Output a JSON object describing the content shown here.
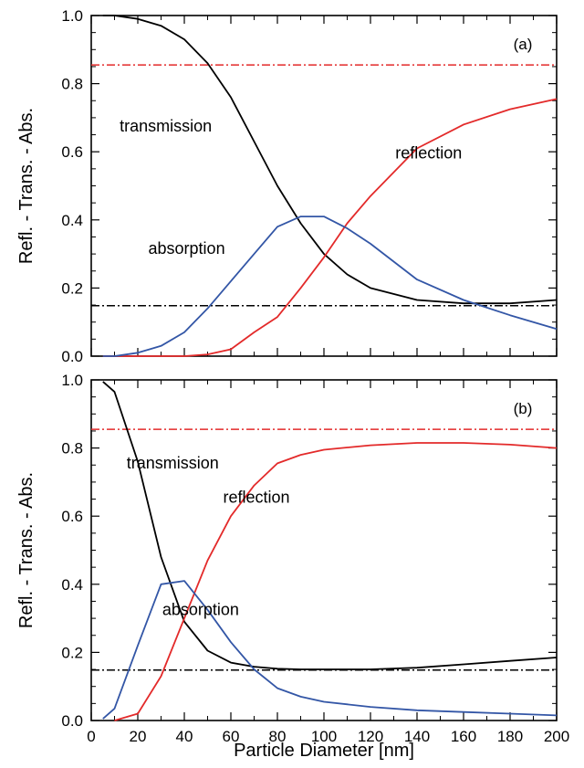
{
  "chart_data": [
    {
      "type": "line",
      "panel_label": "(a)",
      "xlabel": "",
      "ylabel": "Refl. - Trans. - Abs.",
      "xlim": [
        0,
        200
      ],
      "ylim": [
        0,
        1.0
      ],
      "xticks": [
        0,
        20,
        40,
        60,
        80,
        100,
        120,
        140,
        160,
        180,
        200
      ],
      "yticks": [
        0.0,
        0.2,
        0.4,
        0.6,
        0.8,
        1.0
      ],
      "x_tick_labels_shown": false,
      "grid": false,
      "series": [
        {
          "name": "transmission",
          "color": "#000000",
          "x": [
            5,
            10,
            20,
            30,
            40,
            50,
            60,
            70,
            80,
            90,
            100,
            110,
            120,
            140,
            160,
            180,
            200
          ],
          "y": [
            1.0,
            1.0,
            0.99,
            0.97,
            0.93,
            0.86,
            0.76,
            0.63,
            0.5,
            0.39,
            0.3,
            0.24,
            0.2,
            0.165,
            0.155,
            0.155,
            0.165
          ]
        },
        {
          "name": "reflection",
          "color": "#e32a2a",
          "x": [
            5,
            10,
            20,
            30,
            40,
            50,
            60,
            70,
            80,
            90,
            100,
            110,
            120,
            140,
            160,
            180,
            200
          ],
          "y": [
            0.0,
            0.0,
            0.0,
            0.0,
            0.0,
            0.005,
            0.02,
            0.07,
            0.115,
            0.2,
            0.29,
            0.39,
            0.47,
            0.61,
            0.68,
            0.725,
            0.755
          ]
        },
        {
          "name": "absorption",
          "color": "#3356a6",
          "x": [
            5,
            10,
            20,
            30,
            40,
            50,
            60,
            70,
            80,
            90,
            100,
            110,
            120,
            140,
            160,
            180,
            200
          ],
          "y": [
            0.0,
            0.0,
            0.01,
            0.03,
            0.07,
            0.14,
            0.22,
            0.3,
            0.38,
            0.41,
            0.41,
            0.375,
            0.33,
            0.225,
            0.165,
            0.12,
            0.08
          ]
        }
      ],
      "reference_lines": [
        {
          "y": 0.855,
          "color": "#e32a2a",
          "style": "dash-dot"
        },
        {
          "y": 0.148,
          "color": "#000000",
          "style": "dash-dot"
        }
      ],
      "annotations": [
        {
          "text": "transmission",
          "x": 32,
          "y": 0.66
        },
        {
          "text": "reflection",
          "x": 145,
          "y": 0.58
        },
        {
          "text": "absorption",
          "x": 41,
          "y": 0.3
        }
      ]
    },
    {
      "type": "line",
      "panel_label": "(b)",
      "xlabel": "Particle Diameter [nm]",
      "ylabel": "Refl. - Trans. - Abs.",
      "xlim": [
        0,
        200
      ],
      "ylim": [
        0,
        1.0
      ],
      "xticks": [
        0,
        20,
        40,
        60,
        80,
        100,
        120,
        140,
        160,
        180,
        200
      ],
      "yticks": [
        0.0,
        0.2,
        0.4,
        0.6,
        0.8,
        1.0
      ],
      "x_tick_labels_shown": true,
      "grid": false,
      "series": [
        {
          "name": "transmission",
          "color": "#000000",
          "x": [
            5,
            10,
            20,
            30,
            40,
            50,
            60,
            70,
            80,
            90,
            100,
            120,
            140,
            160,
            180,
            200
          ],
          "y": [
            0.995,
            0.965,
            0.76,
            0.48,
            0.29,
            0.205,
            0.17,
            0.158,
            0.152,
            0.15,
            0.15,
            0.15,
            0.155,
            0.165,
            0.175,
            0.185
          ]
        },
        {
          "name": "reflection",
          "color": "#e32a2a",
          "x": [
            10,
            20,
            30,
            40,
            50,
            60,
            70,
            80,
            90,
            100,
            120,
            140,
            160,
            180,
            200
          ],
          "y": [
            0.0,
            0.02,
            0.13,
            0.3,
            0.47,
            0.6,
            0.69,
            0.755,
            0.78,
            0.795,
            0.808,
            0.815,
            0.815,
            0.81,
            0.8
          ]
        },
        {
          "name": "absorption",
          "color": "#3356a6",
          "x": [
            5,
            10,
            20,
            30,
            40,
            50,
            60,
            70,
            80,
            90,
            100,
            120,
            140,
            160,
            180,
            200
          ],
          "y": [
            0.005,
            0.035,
            0.22,
            0.4,
            0.41,
            0.325,
            0.23,
            0.15,
            0.095,
            0.07,
            0.055,
            0.04,
            0.03,
            0.025,
            0.02,
            0.015
          ]
        }
      ],
      "reference_lines": [
        {
          "y": 0.855,
          "color": "#e32a2a",
          "style": "dash-dot"
        },
        {
          "y": 0.148,
          "color": "#000000",
          "style": "dash-dot"
        }
      ],
      "annotations": [
        {
          "text": "transmission",
          "x": 35,
          "y": 0.74
        },
        {
          "text": "reflection",
          "x": 71,
          "y": 0.64
        },
        {
          "text": "absorption",
          "x": 47,
          "y": 0.31
        }
      ]
    }
  ]
}
